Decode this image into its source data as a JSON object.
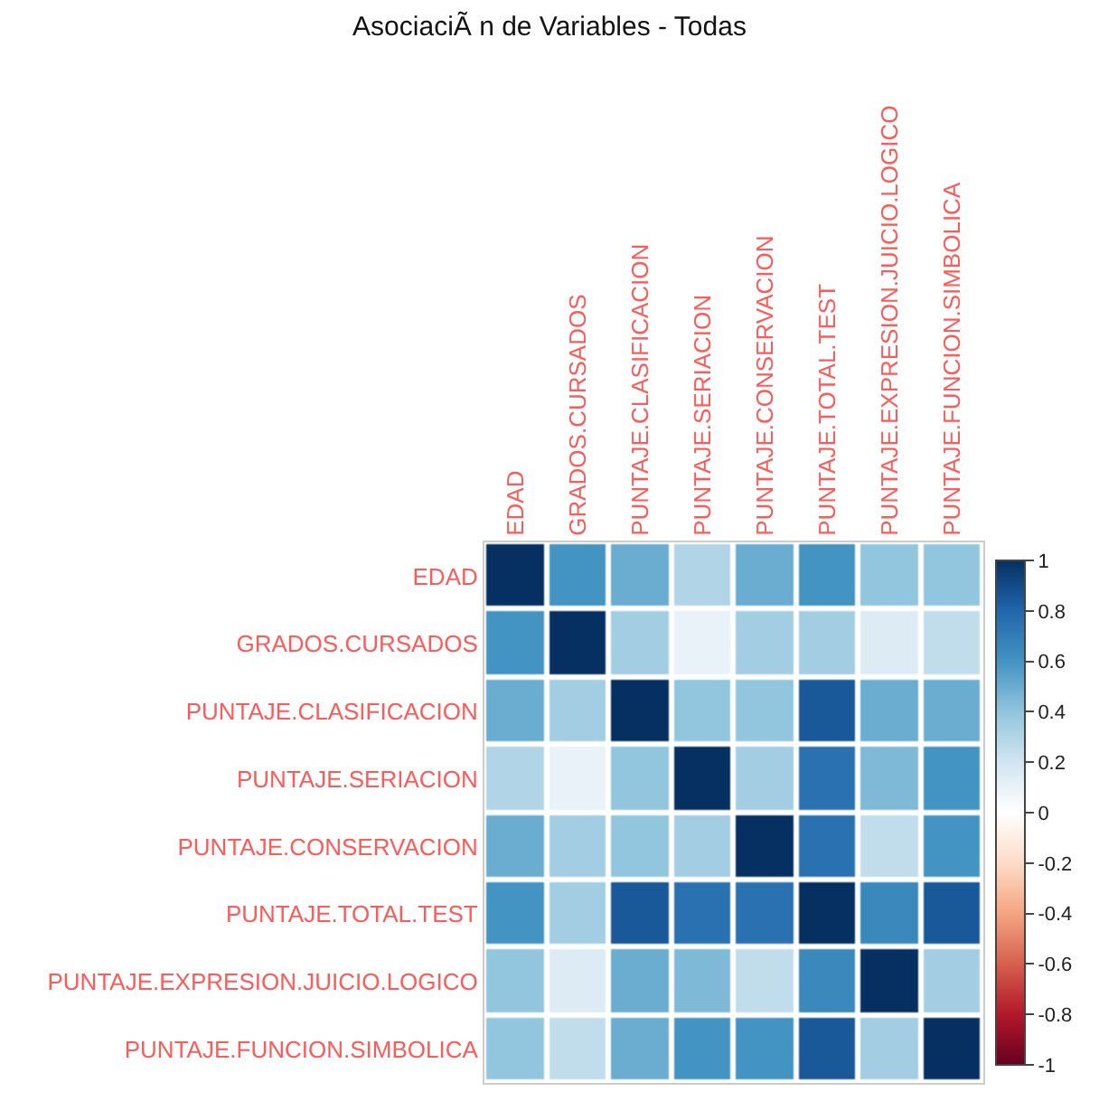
{
  "chart_data": {
    "type": "heatmap",
    "title": "AsociaciÃ n de Variables - Todas",
    "categories": [
      "EDAD",
      "GRADOS.CURSADOS",
      "PUNTAJE.CLASIFICACION",
      "PUNTAJE.SERIACION",
      "PUNTAJE.CONSERVACION",
      "PUNTAJE.TOTAL.TEST",
      "PUNTAJE.EXPRESION.JUICIO.LOGICO",
      "PUNTAJE.FUNCION.SIMBOLICA"
    ],
    "y_categories": [
      "EDAD",
      "GRADOS.CURSADOS",
      "PUNTAJE.CLASIFICACION",
      "PUNTAJE.SERIACION",
      "PUNTAJE.CONSERVACION",
      "PUNTAJE.TOTAL.TEST",
      "PUNTAJE.EXPRESION.JUICIO.LOGICO",
      "PUNTAJE.FUNCION.SIMBOLICA"
    ],
    "cells": [
      [
        1,
        0.6,
        0.5,
        0.3,
        0.5,
        0.6,
        0.4,
        0.4
      ],
      [
        0.6,
        1,
        0.35,
        0.1,
        0.35,
        0.35,
        0.15,
        0.25
      ],
      [
        0.5,
        0.35,
        1,
        0.4,
        0.4,
        0.85,
        0.5,
        0.5
      ],
      [
        0.3,
        0.1,
        0.4,
        1,
        0.35,
        0.75,
        0.45,
        0.6
      ],
      [
        0.5,
        0.35,
        0.4,
        0.35,
        1,
        0.75,
        0.25,
        0.6
      ],
      [
        0.6,
        0.35,
        0.85,
        0.75,
        0.75,
        1,
        0.65,
        0.85
      ],
      [
        0.4,
        0.15,
        0.5,
        0.45,
        0.25,
        0.65,
        1,
        0.35
      ],
      [
        0.4,
        0.25,
        0.5,
        0.6,
        0.6,
        0.85,
        0.35,
        1
      ]
    ],
    "clim": [
      -1,
      1
    ],
    "cticks": [
      -1,
      -0.8,
      -0.6,
      -0.4,
      -0.2,
      0,
      0.2,
      0.4,
      0.6,
      0.8,
      1
    ]
  }
}
